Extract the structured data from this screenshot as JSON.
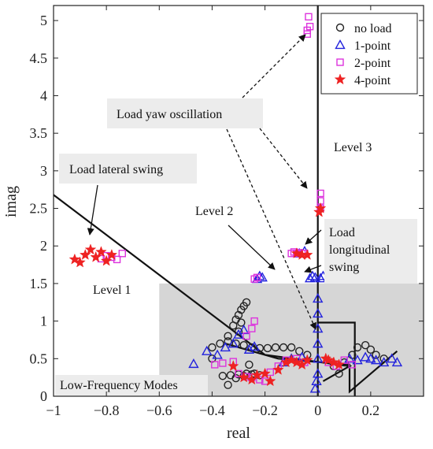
{
  "chart_data": {
    "type": "scatter",
    "title": "",
    "xlabel": "real",
    "ylabel": "imag",
    "xlim": [
      -1,
      0.4
    ],
    "ylim": [
      0,
      5.2
    ],
    "xticks": [
      -1,
      -0.8,
      -0.6,
      -0.4,
      -0.2,
      0,
      0.2
    ],
    "xtick_labels": [
      "−1",
      "−0.8",
      "−0.6",
      "−0.4",
      "−0.2",
      "0",
      "0.2"
    ],
    "yticks": [
      0,
      0.5,
      1,
      1.5,
      2,
      2.5,
      3,
      3.5,
      4,
      4.5,
      5
    ],
    "ytick_labels": [
      "0",
      "0.5",
      "1",
      "1.5",
      "2",
      "2.5",
      "3",
      "3.5",
      "4",
      "4.5",
      "5"
    ],
    "grid": false,
    "legend_position": "top-right",
    "low_frequency_region": {
      "x": [
        -0.6,
        0.4
      ],
      "y": [
        0,
        1.5
      ],
      "color": "#d6d6d6"
    },
    "boundary_lines": [
      {
        "name": "",
        "points": [
          [
            -1,
            2.68
          ],
          [
            -0.2,
            0.55
          ],
          [
            0.12,
            0.4
          ],
          [
            0.02,
            0.2
          ]
        ]
      },
      {
        "name": "",
        "points": [
          [
            -0.35,
            0.7
          ],
          [
            -0.15,
            0.5
          ],
          [
            0.12,
            0.42
          ],
          [
            0.12,
            0.06
          ],
          [
            0.3,
            0.6
          ]
        ]
      },
      {
        "name": "",
        "points": [
          [
            0,
            0
          ],
          [
            0,
            5.2
          ]
        ]
      },
      {
        "name": "",
        "points": [
          [
            0,
            0.98
          ],
          [
            0.14,
            0.98
          ],
          [
            0.14,
            0
          ]
        ]
      }
    ],
    "series": [
      {
        "name": "no load",
        "marker": "circle",
        "color": "#222222",
        "points": [
          [
            -0.34,
            0.15
          ],
          [
            -0.31,
            0.24
          ],
          [
            -0.28,
            0.27
          ],
          [
            -0.25,
            0.29
          ],
          [
            -0.22,
            0.28
          ],
          [
            -0.33,
            0.28
          ],
          [
            -0.3,
            0.29
          ],
          [
            -0.27,
            0.3
          ],
          [
            -0.24,
            0.3
          ],
          [
            -0.36,
            0.27
          ],
          [
            -0.4,
            0.65
          ],
          [
            -0.37,
            0.7
          ],
          [
            -0.34,
            0.73
          ],
          [
            -0.31,
            0.7
          ],
          [
            -0.28,
            0.68
          ],
          [
            -0.25,
            0.65
          ],
          [
            -0.22,
            0.64
          ],
          [
            -0.19,
            0.64
          ],
          [
            -0.16,
            0.65
          ],
          [
            -0.13,
            0.65
          ],
          [
            -0.1,
            0.65
          ],
          [
            -0.07,
            0.6
          ],
          [
            -0.04,
            0.55
          ],
          [
            -0.34,
            0.8
          ],
          [
            -0.3,
            0.86
          ],
          [
            -0.32,
            0.94
          ],
          [
            -0.31,
            1.02
          ],
          [
            -0.3,
            1.08
          ],
          [
            -0.29,
            1.15
          ],
          [
            -0.28,
            1.2
          ],
          [
            -0.27,
            1.25
          ],
          [
            -0.29,
            0.98
          ],
          [
            0.08,
            0.3
          ],
          [
            0.1,
            0.45
          ],
          [
            0.13,
            0.55
          ],
          [
            0.15,
            0.65
          ],
          [
            0.18,
            0.68
          ],
          [
            0.2,
            0.62
          ],
          [
            0.22,
            0.55
          ],
          [
            0.25,
            0.5
          ],
          [
            0.06,
            0.4
          ],
          [
            -0.4,
            0.5
          ],
          [
            -0.26,
            0.42
          ]
        ]
      },
      {
        "name": "1-point",
        "marker": "triangle",
        "color": "#2222dd",
        "points": [
          [
            -0.47,
            0.43
          ],
          [
            -0.42,
            0.6
          ],
          [
            -0.38,
            0.55
          ],
          [
            -0.35,
            0.65
          ],
          [
            -0.32,
            0.7
          ],
          [
            -0.3,
            0.82
          ],
          [
            -0.28,
            0.88
          ],
          [
            -0.26,
            0.62
          ],
          [
            -0.24,
            0.66
          ],
          [
            -0.23,
            1.56
          ],
          [
            -0.22,
            1.6
          ],
          [
            -0.21,
            1.58
          ],
          [
            -0.03,
            1.57
          ],
          [
            -0.02,
            1.6
          ],
          [
            -0.01,
            1.58
          ],
          [
            0.01,
            1.57
          ],
          [
            0.02,
            1.6
          ],
          [
            -0.01,
            0.1
          ],
          [
            -0.005,
            0.2
          ],
          [
            0,
            0.3
          ],
          [
            0,
            0.5
          ],
          [
            0,
            0.7
          ],
          [
            0,
            0.9
          ],
          [
            0,
            1.1
          ],
          [
            0,
            1.3
          ],
          [
            -0.07,
            1.9
          ],
          [
            -0.05,
            1.93
          ],
          [
            0.12,
            0.5
          ],
          [
            0.15,
            0.48
          ],
          [
            0.18,
            0.52
          ],
          [
            0.2,
            0.5
          ],
          [
            0.22,
            0.48
          ],
          [
            0.25,
            0.45
          ],
          [
            0.28,
            0.5
          ],
          [
            0.3,
            0.45
          ],
          [
            -0.1,
            0.5
          ],
          [
            -0.06,
            0.52
          ],
          [
            -0.13,
            0.45
          ]
        ]
      },
      {
        "name": "2-point",
        "marker": "square",
        "color": "#dd33dd",
        "points": [
          [
            -0.76,
            1.82
          ],
          [
            -0.78,
            1.85
          ],
          [
            -0.8,
            1.87
          ],
          [
            -0.82,
            1.83
          ],
          [
            -0.74,
            1.9
          ],
          [
            -0.24,
            1.56
          ],
          [
            -0.23,
            1.58
          ],
          [
            -0.1,
            1.9
          ],
          [
            -0.09,
            1.92
          ],
          [
            -0.08,
            1.9
          ],
          [
            -0.07,
            1.91
          ],
          [
            -0.06,
            1.9
          ],
          [
            -0.05,
            1.9
          ],
          [
            -0.04,
            4.82
          ],
          [
            -0.04,
            4.87
          ],
          [
            -0.03,
            4.92
          ],
          [
            -0.035,
            5.05
          ],
          [
            0.01,
            2.5
          ],
          [
            0.01,
            2.6
          ],
          [
            0.01,
            2.7
          ],
          [
            -0.39,
            0.42
          ],
          [
            -0.36,
            0.44
          ],
          [
            -0.32,
            0.46
          ],
          [
            -0.3,
            0.3
          ],
          [
            -0.27,
            0.26
          ],
          [
            -0.25,
            0.25
          ],
          [
            -0.22,
            0.22
          ],
          [
            -0.2,
            0.2
          ],
          [
            -0.18,
            0.32
          ],
          [
            -0.15,
            0.4
          ],
          [
            -0.12,
            0.48
          ],
          [
            -0.08,
            0.5
          ],
          [
            -0.05,
            0.45
          ],
          [
            0.04,
            0.45
          ],
          [
            0.07,
            0.4
          ],
          [
            -0.27,
            0.8
          ],
          [
            -0.25,
            0.9
          ],
          [
            -0.24,
            1.0
          ],
          [
            0.1,
            0.48
          ],
          [
            0.13,
            0.42
          ]
        ]
      },
      {
        "name": "4-point",
        "marker": "star",
        "color": "#ee2222",
        "points": [
          [
            -0.92,
            1.82
          ],
          [
            -0.9,
            1.78
          ],
          [
            -0.88,
            1.88
          ],
          [
            -0.86,
            1.95
          ],
          [
            -0.84,
            1.85
          ],
          [
            -0.82,
            1.92
          ],
          [
            -0.8,
            1.8
          ],
          [
            -0.78,
            1.88
          ],
          [
            -0.08,
            1.9
          ],
          [
            -0.06,
            1.88
          ],
          [
            -0.04,
            1.88
          ],
          [
            0.005,
            2.45
          ],
          [
            0.01,
            2.5
          ],
          [
            -0.32,
            0.4
          ],
          [
            -0.28,
            0.25
          ],
          [
            -0.25,
            0.22
          ],
          [
            -0.23,
            0.28
          ],
          [
            -0.2,
            0.3
          ],
          [
            -0.18,
            0.2
          ],
          [
            -0.15,
            0.35
          ],
          [
            -0.12,
            0.45
          ],
          [
            -0.1,
            0.48
          ],
          [
            -0.08,
            0.45
          ],
          [
            -0.06,
            0.42
          ],
          [
            -0.04,
            0.48
          ],
          [
            0.04,
            0.48
          ],
          [
            0.06,
            0.45
          ],
          [
            0.08,
            0.42
          ],
          [
            0.03,
            0.5
          ]
        ]
      }
    ],
    "annotations": {
      "load_yaw_oscillation": "Load yaw oscillation",
      "load_lateral_swing": "Load lateral swing",
      "level_1": "Level 1",
      "level_2": "Level 2",
      "level_3": "Level 3",
      "load_longitudinal_swing_line1": "Load",
      "load_longitudinal_swing_line2": "longitudinal",
      "load_longitudinal_swing_line3": "swing",
      "low_frequency_modes": "Low-Frequency Modes"
    }
  }
}
